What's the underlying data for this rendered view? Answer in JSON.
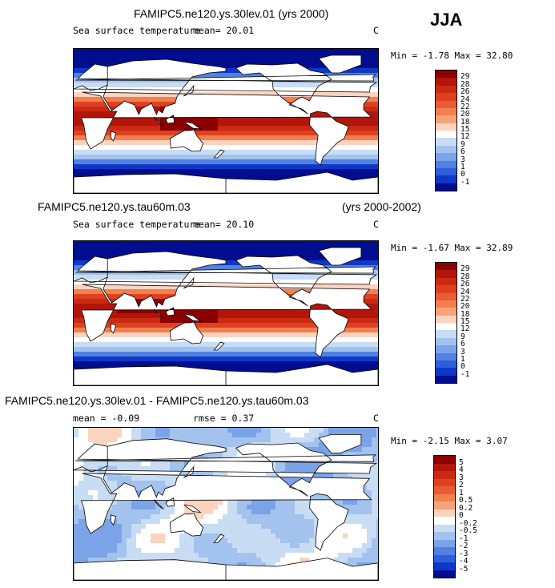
{
  "season": "JJA",
  "panels": [
    {
      "title_left": "FAMIPC5.ne120.ys.30lev.01 (yrs 2000)",
      "title_right": "",
      "var_label": "Sea surface temperature",
      "stat1": "mean=  20.01",
      "stat2": "",
      "units": "C",
      "minmax": "Min = -1.78 Max = 32.80",
      "levels": [
        "29",
        "28",
        "26",
        "24",
        "22",
        "20",
        "18",
        "15",
        "12",
        "9",
        "6",
        "3",
        "1",
        "0",
        "-1"
      ],
      "colors": [
        "#8b0000",
        "#b2150a",
        "#cb2a12",
        "#de4122",
        "#ea5c34",
        "#f2804f",
        "#f8a27a",
        "#fcd3bf",
        "#ffffff",
        "#c8dcf4",
        "#a3c2ee",
        "#7aa3e8",
        "#5181e2",
        "#2f5fd8",
        "#1038c8",
        "#000d8e"
      ]
    },
    {
      "title_left": "FAMIPC5.ne120.ys.tau60m.03",
      "title_right": "(yrs 2000-2002)",
      "var_label": "Sea surface temperature",
      "stat1": "mean=  20.10",
      "stat2": "",
      "units": "C",
      "minmax": "Min = -1.67 Max = 32.89",
      "levels": [
        "29",
        "28",
        "26",
        "24",
        "22",
        "20",
        "18",
        "15",
        "12",
        "9",
        "6",
        "3",
        "1",
        "0",
        "-1"
      ],
      "colors": [
        "#8b0000",
        "#b2150a",
        "#cb2a12",
        "#de4122",
        "#ea5c34",
        "#f2804f",
        "#f8a27a",
        "#fcd3bf",
        "#ffffff",
        "#c8dcf4",
        "#a3c2ee",
        "#7aa3e8",
        "#5181e2",
        "#2f5fd8",
        "#1038c8",
        "#000d8e"
      ]
    },
    {
      "title_left": "FAMIPC5.ne120.ys.30lev.01 - FAMIPC5.ne120.ys.tau60m.03",
      "title_right": "",
      "var_label": "",
      "stat1": "mean =   -0.09",
      "stat2": "rmse =   0.37",
      "units": "C",
      "minmax": "Min = -2.15 Max = 3.07",
      "levels": [
        "5",
        "4",
        "3",
        "2",
        "1",
        "0.5",
        "0.2",
        "0",
        "-0.2",
        "-0.5",
        "-1",
        "-2",
        "-3",
        "-4",
        "-5"
      ],
      "colors": [
        "#8b0000",
        "#b2150a",
        "#cb2a12",
        "#de4122",
        "#ea5c34",
        "#f2804f",
        "#f8a27a",
        "#fcd3bf",
        "#ffffff",
        "#c8dcf4",
        "#a3c2ee",
        "#7aa3e8",
        "#5181e2",
        "#2f5fd8",
        "#1038c8",
        "#000d8e"
      ]
    }
  ]
}
